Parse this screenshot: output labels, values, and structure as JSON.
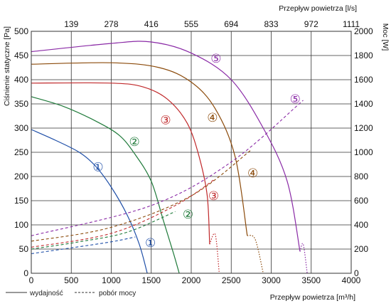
{
  "chart_data": {
    "type": "line",
    "xlabel": "Przepływ powietrza [m³/h]",
    "x2label": "Przepływ powietrza [l/s]",
    "ylabel": "Ciśnienie statyczne [Pa]",
    "y2label": "Moc [W]",
    "xlim": [
      0,
      4000
    ],
    "ylim": [
      0,
      500
    ],
    "y2lim": [
      0,
      2000
    ],
    "x_ticks": [
      0,
      500,
      1000,
      1500,
      2000,
      2500,
      3000,
      3500,
      4000
    ],
    "x2_ticks": [
      {
        "x": 500,
        "label": "139"
      },
      {
        "x": 1000,
        "label": "278"
      },
      {
        "x": 1500,
        "label": "416"
      },
      {
        "x": 2000,
        "label": "555"
      },
      {
        "x": 2500,
        "label": "694"
      },
      {
        "x": 3000,
        "label": "833"
      },
      {
        "x": 3500,
        "label": "972"
      },
      {
        "x": 4000,
        "label": "1111"
      }
    ],
    "y_ticks": [
      0,
      50,
      100,
      150,
      200,
      250,
      300,
      350,
      400,
      450,
      500
    ],
    "y2_ticks": [
      0,
      200,
      400,
      600,
      800,
      1000,
      1200,
      1400,
      1600,
      1800,
      2000
    ],
    "grid": true,
    "legend": [
      {
        "label": "wydajność",
        "style": "solid"
      },
      {
        "label": "pobór mocy",
        "style": "dashed"
      }
    ],
    "series": [
      {
        "label": "①",
        "color": "#1f4fa8",
        "pressure": [
          [
            0,
            297
          ],
          [
            300,
            275
          ],
          [
            600,
            250
          ],
          [
            800,
            222
          ],
          [
            1000,
            178
          ],
          [
            1200,
            120
          ],
          [
            1350,
            60
          ],
          [
            1450,
            0
          ]
        ],
        "power": [
          [
            0,
            162
          ],
          [
            500,
            210
          ],
          [
            1000,
            260
          ],
          [
            1300,
            300
          ]
        ],
        "marker_pressure": [
          835,
          220
        ],
        "marker_power": [
          1490,
          63
        ]
      },
      {
        "label": "②",
        "color": "#1f7a3a",
        "pressure": [
          [
            0,
            365
          ],
          [
            400,
            345
          ],
          [
            800,
            315
          ],
          [
            1100,
            285
          ],
          [
            1300,
            245
          ],
          [
            1500,
            190
          ],
          [
            1650,
            110
          ],
          [
            1780,
            40
          ],
          [
            1850,
            0
          ]
        ],
        "power": [
          [
            0,
            200
          ],
          [
            600,
            260
          ],
          [
            1200,
            340
          ],
          [
            1800,
            510
          ]
        ],
        "marker_pressure": [
          1290,
          272
        ],
        "marker_power": [
          1960,
          122
        ]
      },
      {
        "label": "③",
        "color": "#c0282a",
        "pressure": [
          [
            0,
            393
          ],
          [
            1000,
            393
          ],
          [
            1400,
            385
          ],
          [
            1700,
            360
          ],
          [
            1950,
            310
          ],
          [
            2100,
            240
          ],
          [
            2200,
            160
          ],
          [
            2300,
            80
          ],
          [
            2350,
            0
          ]
        ],
        "power": [
          [
            0,
            215
          ],
          [
            1000,
            330
          ],
          [
            1800,
            560
          ],
          [
            2300,
            780
          ]
        ],
        "pressure_dotted_from": [
          2230,
          60
        ],
        "marker_pressure": [
          1680,
          317
        ],
        "marker_power": [
          2280,
          160
        ]
      },
      {
        "label": "④",
        "color": "#8b4a0a",
        "pressure": [
          [
            0,
            432
          ],
          [
            1000,
            435
          ],
          [
            1600,
            425
          ],
          [
            2000,
            395
          ],
          [
            2300,
            340
          ],
          [
            2550,
            240
          ],
          [
            2700,
            140
          ],
          [
            2800,
            70
          ],
          [
            2900,
            0
          ]
        ],
        "power": [
          [
            0,
            265
          ],
          [
            1000,
            380
          ],
          [
            2000,
            640
          ],
          [
            2750,
            1020
          ]
        ],
        "pressure_dotted_from": [
          2700,
          78
        ],
        "marker_pressure": [
          2265,
          322
        ],
        "marker_power": [
          2770,
          207
        ]
      },
      {
        "label": "⑤",
        "color": "#8a2aa6",
        "pressure": [
          [
            0,
            458
          ],
          [
            1000,
            475
          ],
          [
            1500,
            478
          ],
          [
            2000,
            455
          ],
          [
            2500,
            400
          ],
          [
            2900,
            300
          ],
          [
            3200,
            190
          ],
          [
            3400,
            60
          ],
          [
            3450,
            0
          ]
        ],
        "power": [
          [
            0,
            310
          ],
          [
            1500,
            560
          ],
          [
            2500,
            920
          ],
          [
            3400,
            1430
          ]
        ],
        "pressure_dotted_from": [
          3360,
          45
        ],
        "marker_pressure": [
          2310,
          444
        ],
        "marker_power": [
          3300,
          360
        ]
      }
    ]
  }
}
